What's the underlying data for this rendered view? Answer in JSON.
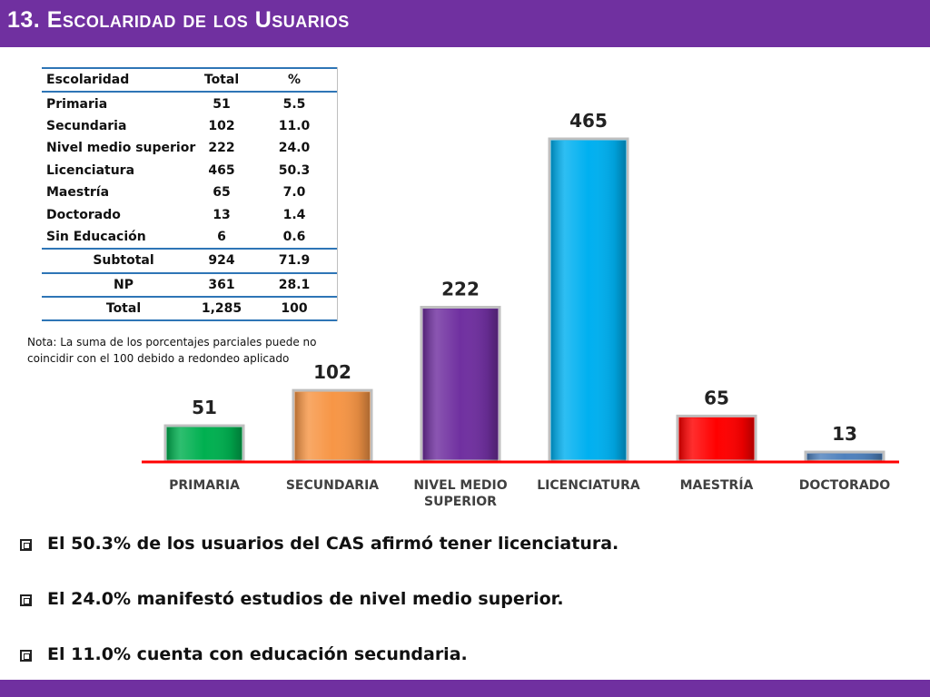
{
  "header": {
    "title": "13. Escolaridad de los Usuarios"
  },
  "table": {
    "headers": [
      "Escolaridad",
      "Total",
      "%"
    ],
    "rows": [
      {
        "name": "Primaria",
        "total": "51",
        "pct": "5.5"
      },
      {
        "name": "Secundaria",
        "total": "102",
        "pct": "11.0"
      },
      {
        "name": "Nivel medio superior",
        "total": "222",
        "pct": "24.0"
      },
      {
        "name": "Licenciatura",
        "total": "465",
        "pct": "50.3"
      },
      {
        "name": "Maestría",
        "total": "65",
        "pct": "7.0"
      },
      {
        "name": "Doctorado",
        "total": "13",
        "pct": "1.4"
      },
      {
        "name": "Sin Educación",
        "total": "6",
        "pct": "0.6"
      }
    ],
    "summary": [
      {
        "name": "Subtotal",
        "total": "924",
        "pct": "71.9"
      },
      {
        "name": "NP",
        "total": "361",
        "pct": "28.1"
      },
      {
        "name": "Total",
        "total": "1,285",
        "pct": "100"
      }
    ]
  },
  "note": {
    "line1": "Nota: La suma de los porcentajes parciales puede no",
    "line2": "coincidir con el 100 debido a redondeo aplicado"
  },
  "chart_data": {
    "type": "bar",
    "categories": [
      "PRIMARIA",
      "SECUNDARIA",
      "NIVEL MEDIO SUPERIOR",
      "LICENCIATURA",
      "MAESTRÍA",
      "DOCTORADO"
    ],
    "category_lines": [
      [
        "PRIMARIA"
      ],
      [
        "SECUNDARIA"
      ],
      [
        "NIVEL MEDIO",
        "SUPERIOR"
      ],
      [
        "LICENCIATURA"
      ],
      [
        "MAESTRÍA"
      ],
      [
        "DOCTORADO"
      ]
    ],
    "values": [
      51,
      102,
      222,
      465,
      65,
      13
    ],
    "colors": [
      "#00b050",
      "#f79646",
      "#7030a0",
      "#00b0f0",
      "#ff0000",
      "#4f81bd"
    ],
    "axis_color": "#ff0000",
    "ylim": [
      0,
      465
    ],
    "grid": false,
    "legend": "none",
    "title": "",
    "xlabel": "",
    "ylabel": ""
  },
  "bullets": [
    "El 50.3% de los usuarios del CAS afirmó tener licenciatura.",
    "El 24.0% manifestó estudios de nivel medio superior.",
    "El 11.0% cuenta con educación secundaria."
  ],
  "colors": {
    "brand": "#7030a0",
    "table_rule": "#2e75b6"
  }
}
